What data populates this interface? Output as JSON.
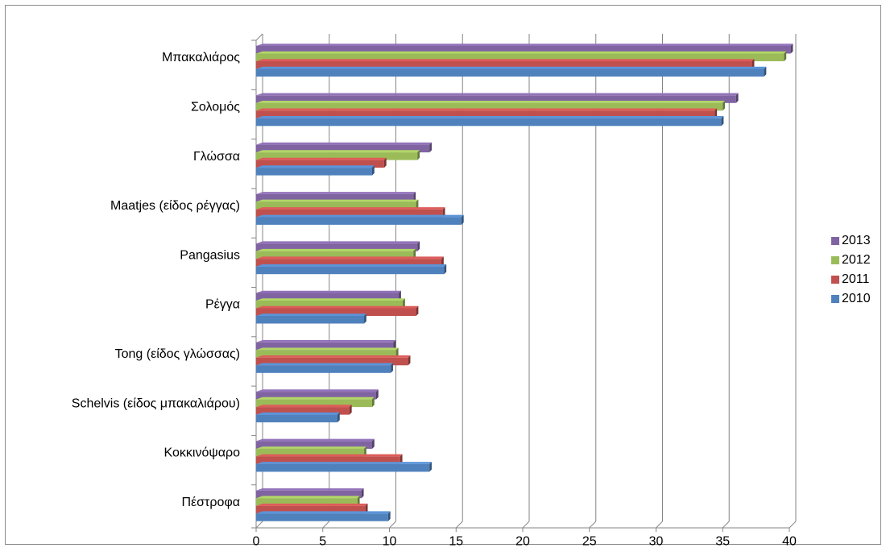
{
  "chart_data": {
    "type": "bar",
    "orientation": "horizontal",
    "style": "3d-clustered",
    "categories": [
      "Μπακαλιάρος",
      "Σολομός",
      "Γλώσσα",
      "Maatjes (είδος ρέγγας)",
      "Pangasius",
      "Ρέγγα",
      "Tong (είδος γλώσσας)",
      "Schelvis (είδος μπακαλιάρου)",
      "Κοκκινόψαρο",
      "Πέστροφα"
    ],
    "series": [
      {
        "name": "2013",
        "color": "#8064a2",
        "values": [
          40.1,
          36.0,
          13.0,
          11.8,
          12.1,
          10.7,
          10.3,
          9.0,
          8.7,
          7.9
        ]
      },
      {
        "name": "2012",
        "color": "#9bbb59",
        "values": [
          39.6,
          35.0,
          12.1,
          12.0,
          11.8,
          11.0,
          10.5,
          8.7,
          8.1,
          7.6
        ]
      },
      {
        "name": "2011",
        "color": "#c0504d",
        "values": [
          37.2,
          34.4,
          9.6,
          14.0,
          13.9,
          12.0,
          11.4,
          7.0,
          10.8,
          8.2
        ]
      },
      {
        "name": "2010",
        "color": "#4f81bd",
        "values": [
          38.1,
          34.9,
          8.7,
          15.4,
          14.1,
          8.1,
          10.1,
          6.1,
          13.0,
          9.9
        ]
      }
    ],
    "xlim": [
      0,
      40
    ],
    "xticks": [
      "0",
      "5",
      "10",
      "15",
      "20",
      "25",
      "30",
      "35",
      "40"
    ],
    "grid": true,
    "legend_position": "right",
    "title": "",
    "xlabel": "",
    "ylabel": ""
  }
}
